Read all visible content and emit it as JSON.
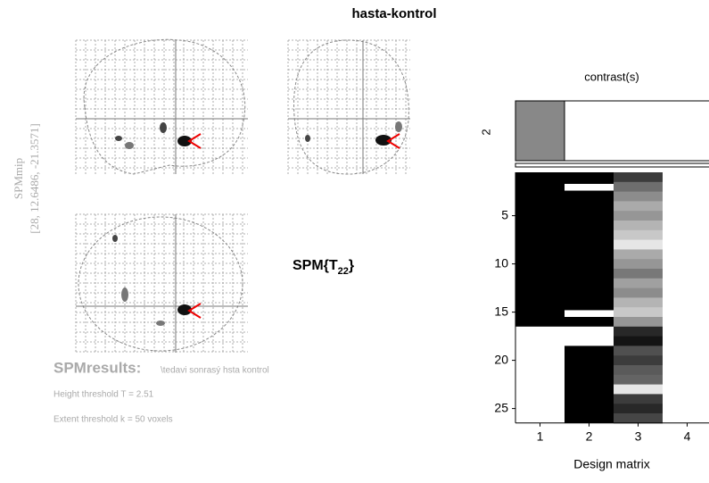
{
  "title": "hasta-kontrol",
  "mip": {
    "label": "SPMmip",
    "coordinates": "[28, 12.6486, -21.3571]"
  },
  "statistic": {
    "prefix": "SPM{T",
    "subscript": "22",
    "suffix": "}"
  },
  "results": {
    "heading": "SPMresults:",
    "contrast_name": "\\tedavi sonrasý hsta kontrol",
    "height_threshold": "Height threshold T = 2.51",
    "extent_threshold": "Extent threshold k = 50 voxels"
  },
  "contrast": {
    "title": "contrast(s)",
    "label": "2"
  },
  "design_matrix": {
    "xlabel": "Design matrix",
    "xticks": [
      1,
      2,
      3,
      4
    ],
    "yticks": [
      5,
      10,
      15,
      20,
      25
    ]
  }
}
